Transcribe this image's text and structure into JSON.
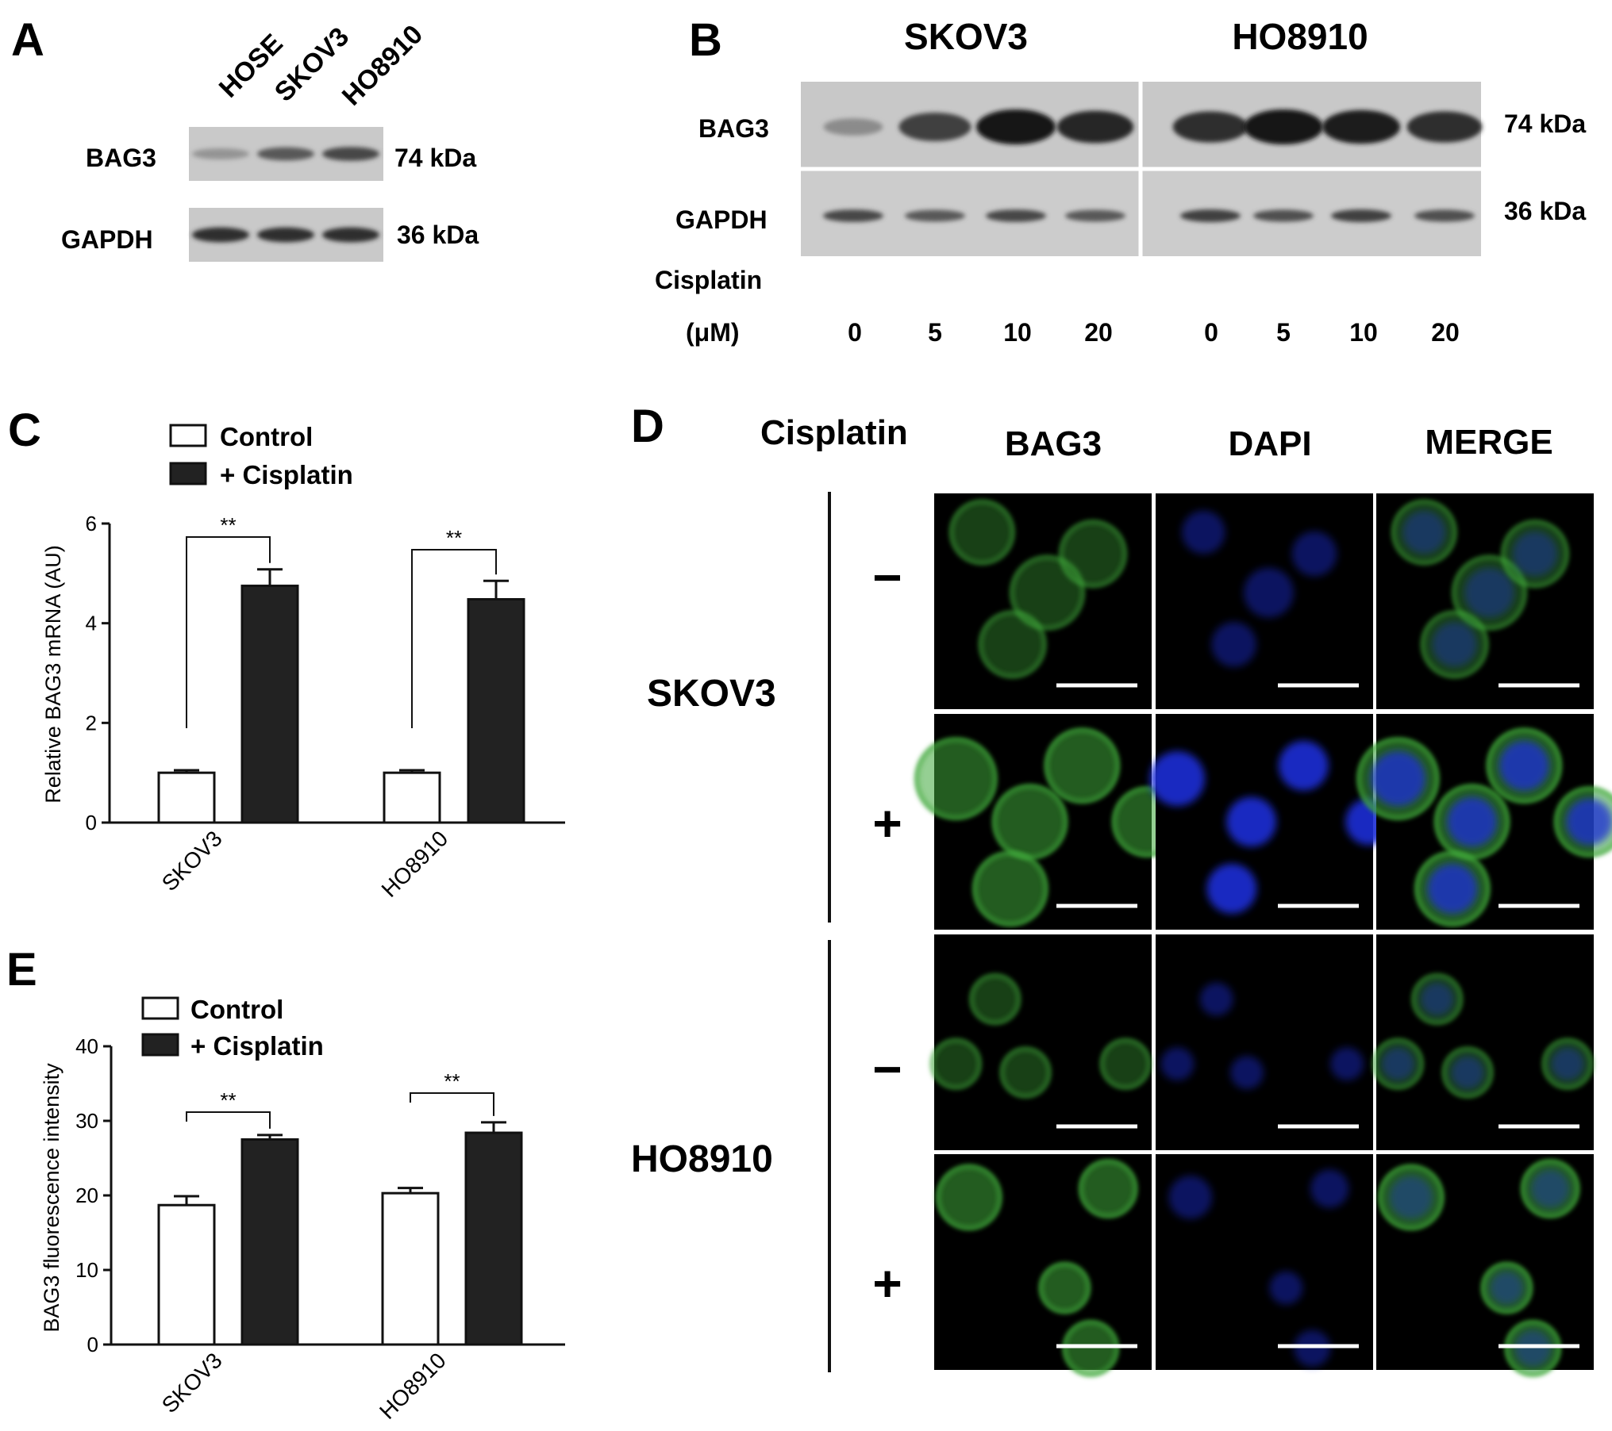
{
  "panels": {
    "A": {
      "letter": "A",
      "lanes": [
        "HOSE",
        "SKOV3",
        "HO8910"
      ],
      "rows": [
        {
          "label": "BAG3",
          "size": "74 kDa",
          "intensities": [
            0.25,
            0.6,
            0.7
          ]
        },
        {
          "label": "GAPDH",
          "size": "36 kDa",
          "intensities": [
            0.85,
            0.85,
            0.85
          ]
        }
      ]
    },
    "B": {
      "letter": "B",
      "groups": [
        "SKOV3",
        "HO8910"
      ],
      "rows": [
        {
          "label": "BAG3",
          "size": "74 kDa",
          "intensities": [
            0.3,
            0.75,
            1.0,
            0.9,
            0.85,
            1.0,
            0.95,
            0.85
          ]
        },
        {
          "label": "GAPDH",
          "size": "36 kDa",
          "intensities": [
            0.7,
            0.6,
            0.7,
            0.6,
            0.75,
            0.65,
            0.75,
            0.65
          ]
        }
      ],
      "treatment_label": "Cisplatin",
      "unit_label": "(μM)",
      "doses": [
        "0",
        "5",
        "10",
        "20",
        "0",
        "5",
        "10",
        "20"
      ]
    },
    "C": {
      "letter": "C"
    },
    "D": {
      "letter": "D",
      "row_header": "Cisplatin",
      "columns": [
        "BAG3",
        "DAPI",
        "MERGE"
      ],
      "cell_lines": [
        "SKOV3",
        "HO8910"
      ],
      "treatments": [
        "−",
        "+",
        "−",
        "+"
      ],
      "colors": {
        "bag3": "#3fa83a",
        "dapi": "#1a2fd6"
      }
    },
    "E": {
      "letter": "E"
    }
  },
  "chart_data": [
    {
      "type": "bar",
      "panel": "C",
      "categories": [
        "SKOV3",
        "HO8910"
      ],
      "series": [
        {
          "name": "Control",
          "values": [
            1.0,
            1.0
          ],
          "errors": [
            0.05,
            0.05
          ],
          "color": "#ffffff"
        },
        {
          "name": "+ Cisplatin",
          "values": [
            4.75,
            4.48
          ],
          "errors": [
            0.33,
            0.37
          ],
          "color": "#222222"
        }
      ],
      "ylabel": "Relative BAG3 mRNA (AU)",
      "ylim": [
        0,
        6
      ],
      "yticks": [
        "0",
        "2",
        "4",
        "6"
      ],
      "significance": [
        "**",
        "**"
      ],
      "legend_position": "top"
    },
    {
      "type": "bar",
      "panel": "E",
      "categories": [
        "SKOV3",
        "HO8910"
      ],
      "series": [
        {
          "name": "Control",
          "values": [
            18.7,
            20.3
          ],
          "errors": [
            1.2,
            0.7
          ],
          "color": "#ffffff"
        },
        {
          "name": "+ Cisplatin",
          "values": [
            27.5,
            28.4
          ],
          "errors": [
            0.6,
            1.4
          ],
          "color": "#222222"
        }
      ],
      "ylabel": "BAG3 fluorescence intensity",
      "ylim": [
        0,
        40
      ],
      "yticks": [
        "0",
        "10",
        "20",
        "30",
        "40"
      ],
      "significance": [
        "**",
        "**"
      ],
      "legend_position": "top"
    }
  ]
}
